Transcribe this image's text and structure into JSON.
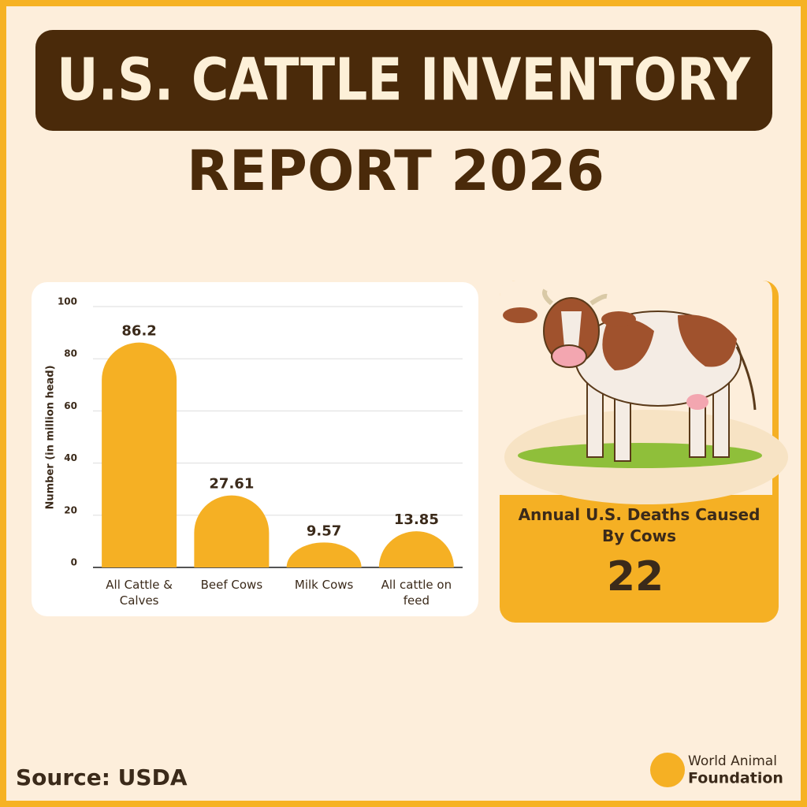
{
  "title": "U.S. CATTLE INVENTORY",
  "subtitle": "REPORT 2026",
  "chart_data": {
    "type": "bar",
    "y_label": "Number (in million head)",
    "categories": [
      "All Cattle & Calves",
      "Beef Cows",
      "Milk Cows",
      "All cattle on feed"
    ],
    "values": [
      86.2,
      27.61,
      9.57,
      13.85
    ],
    "color": "#f5b024",
    "ylim": [
      0,
      100
    ],
    "yticks": [
      0,
      20,
      40,
      60,
      80,
      100
    ],
    "grid": true
  },
  "stat": {
    "label": "Annual U.S. Deaths Caused By Cows",
    "value": 22
  },
  "source": "Source: USDA",
  "logo": {
    "line1": "World Animal",
    "line2": "Foundation"
  }
}
